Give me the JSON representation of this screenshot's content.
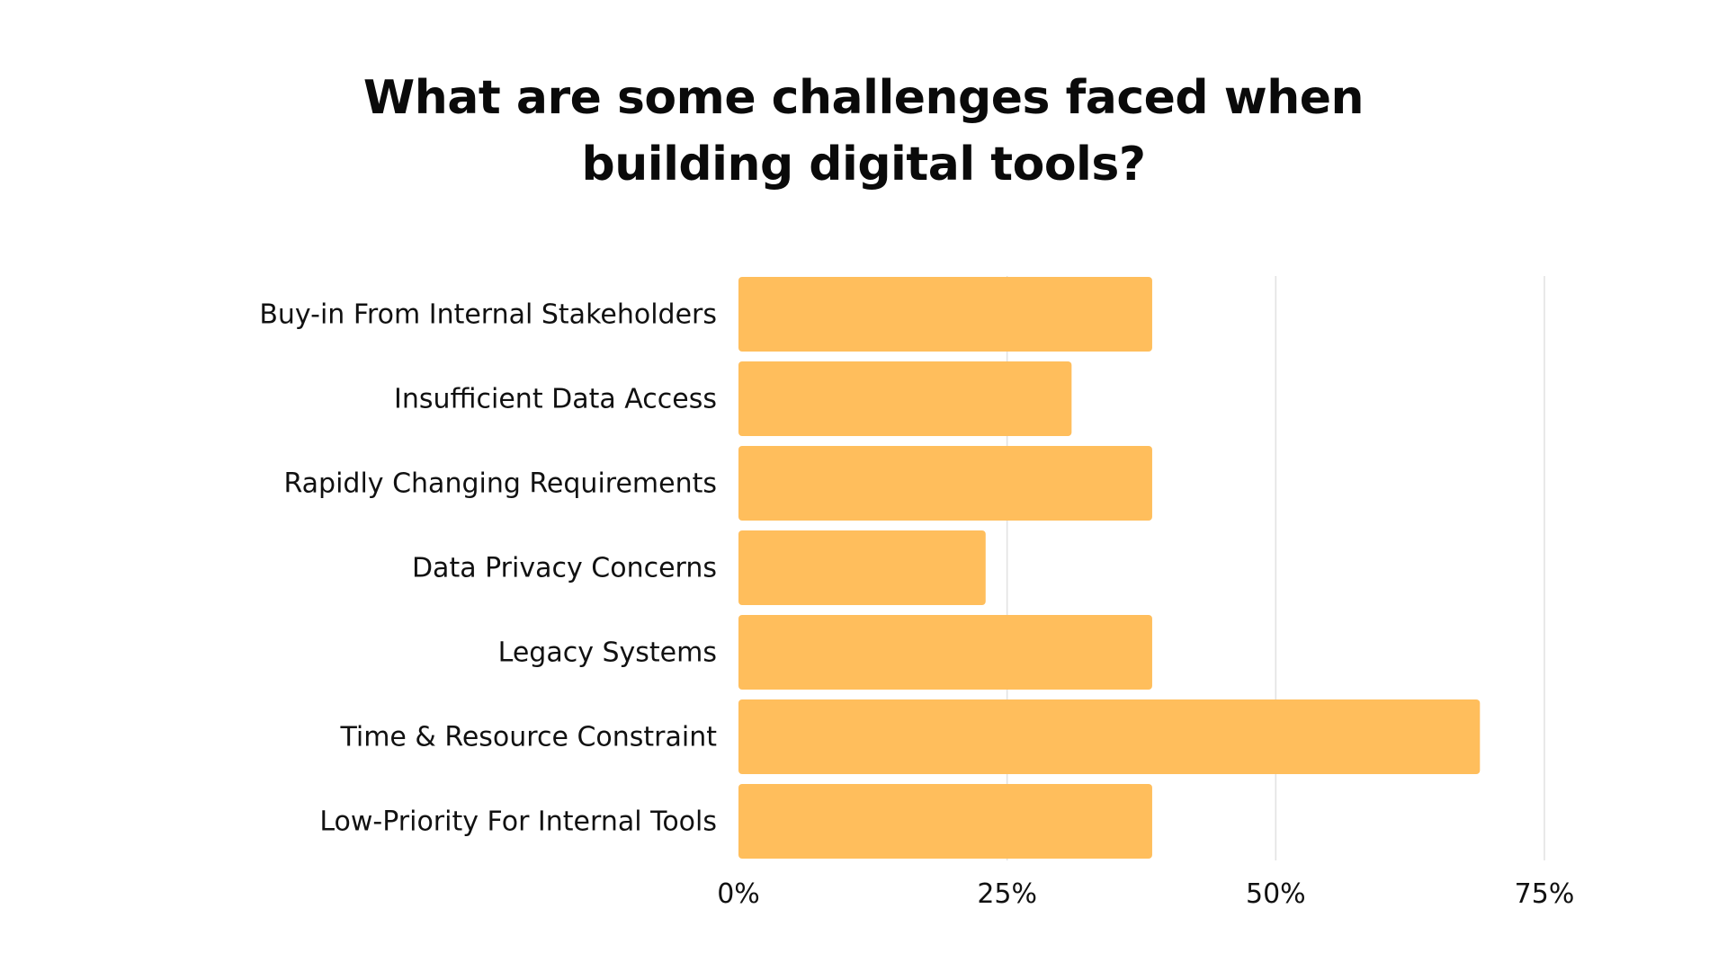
{
  "chart_data": {
    "type": "bar",
    "orientation": "horizontal",
    "title_lines": [
      "What are some challenges faced when",
      "building digital tools?"
    ],
    "categories": [
      "Buy-in From Internal Stakeholders",
      "Insufficient Data Access",
      "Rapidly Changing Requirements",
      "Data Privacy Concerns",
      "Legacy Systems",
      "Time & Resource Constraint",
      "Low-Priority For Internal Tools"
    ],
    "values": [
      38.5,
      31,
      38.5,
      23,
      38.5,
      69,
      38.5
    ],
    "xlim": [
      0,
      75
    ],
    "xticks": [
      0,
      25,
      50,
      75
    ],
    "xtick_labels": [
      "0%",
      "25%",
      "50%",
      "75%"
    ],
    "grid": "vertical",
    "bar_color": "#FFBE5C",
    "grid_color": "#E2E2E2"
  }
}
